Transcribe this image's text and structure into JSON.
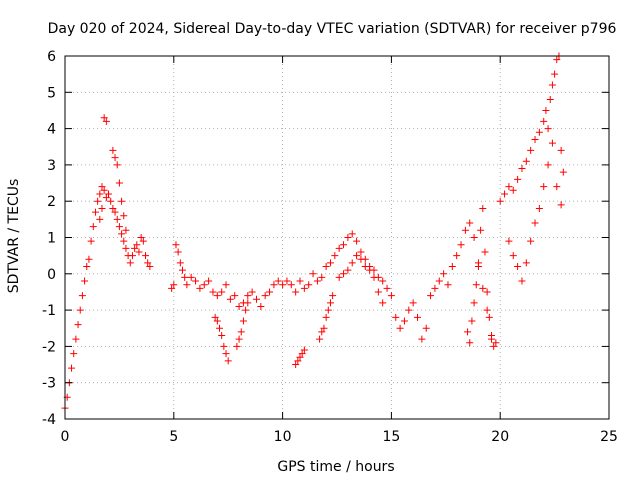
{
  "chart_data": {
    "type": "scatter",
    "title": "Day 020 of 2024, Sidereal Day-to-day VTEC variation (SDTVAR) for receiver p796",
    "xlabel": "GPS time / hours",
    "ylabel": "SDTVAR / TECUs",
    "xlim": [
      0,
      25
    ],
    "ylim": [
      -4,
      6
    ],
    "xticks": [
      0,
      5,
      10,
      15,
      20,
      25
    ],
    "yticks": [
      -4,
      -3,
      -2,
      -1,
      0,
      1,
      2,
      3,
      4,
      5,
      6
    ],
    "grid": true,
    "marker": "+",
    "series": [
      {
        "name": "SDTVAR",
        "color": "#ff0000",
        "x": [
          0.0,
          0.1,
          0.2,
          0.3,
          0.4,
          0.5,
          0.6,
          0.7,
          0.8,
          0.9,
          1.0,
          1.1,
          1.2,
          1.3,
          1.4,
          1.5,
          1.6,
          1.7,
          1.8,
          1.9,
          2.0,
          2.1,
          2.2,
          2.3,
          2.4,
          2.5,
          2.6,
          2.7,
          2.8,
          2.9,
          3.0,
          3.1,
          3.2,
          3.3,
          3.4,
          3.5,
          3.6,
          3.7,
          3.8,
          3.9,
          1.6,
          1.7,
          1.8,
          1.9,
          2.0,
          2.2,
          2.3,
          2.4,
          2.5,
          2.6,
          2.7,
          2.8,
          4.9,
          5.0,
          5.1,
          5.2,
          5.3,
          5.4,
          5.5,
          5.6,
          5.8,
          6.0,
          6.2,
          6.4,
          6.6,
          6.8,
          7.0,
          7.2,
          7.4,
          7.6,
          7.8,
          8.0,
          8.2,
          8.4,
          8.6,
          8.8,
          9.0,
          9.2,
          9.4,
          9.6,
          9.8,
          10.0,
          10.2,
          10.4,
          10.6,
          10.8,
          11.0,
          11.2,
          11.4,
          11.6,
          11.8,
          12.0,
          12.2,
          12.4,
          12.6,
          12.8,
          13.0,
          13.2,
          13.4,
          13.6,
          13.8,
          14.0,
          14.2,
          14.4,
          14.6,
          14.8,
          15.0,
          6.9,
          7.0,
          7.1,
          7.2,
          7.3,
          7.4,
          7.5,
          7.9,
          8.0,
          8.1,
          8.2,
          8.3,
          8.4,
          10.6,
          10.7,
          10.8,
          10.9,
          11.0,
          11.7,
          11.8,
          11.9,
          12.0,
          12.1,
          12.2,
          12.3,
          12.6,
          12.8,
          13.0,
          13.2,
          13.4,
          13.6,
          13.8,
          14.0,
          14.2,
          14.4,
          14.6,
          15.2,
          15.4,
          15.6,
          15.8,
          16.0,
          16.2,
          16.4,
          16.6,
          16.8,
          17.0,
          17.2,
          17.4,
          17.6,
          17.8,
          18.0,
          18.2,
          18.4,
          18.6,
          18.8,
          19.0,
          19.2,
          19.4,
          19.6,
          19.8,
          18.5,
          18.6,
          18.7,
          18.8,
          18.9,
          19.0,
          19.1,
          19.2,
          19.3,
          19.4,
          19.5,
          19.6,
          19.7,
          20.0,
          20.2,
          20.4,
          20.6,
          20.8,
          21.0,
          21.2,
          21.4,
          21.6,
          21.8,
          22.0,
          22.1,
          22.2,
          22.3,
          22.4,
          22.5,
          22.6,
          22.7,
          22.8,
          22.9,
          20.4,
          20.6,
          20.8,
          21.0,
          21.2,
          21.4,
          21.6,
          21.8,
          22.0,
          22.2,
          22.4,
          22.6,
          22.8
        ],
        "y": [
          -3.7,
          -3.4,
          -3.0,
          -2.6,
          -2.2,
          -1.8,
          -1.4,
          -1.0,
          -0.6,
          -0.2,
          0.2,
          0.4,
          0.9,
          1.3,
          1.7,
          2.0,
          2.2,
          2.4,
          2.3,
          2.1,
          2.2,
          2.0,
          1.8,
          1.7,
          1.5,
          1.3,
          1.1,
          0.9,
          0.7,
          0.5,
          0.3,
          0.5,
          0.7,
          0.8,
          0.6,
          1.0,
          0.9,
          0.5,
          0.3,
          0.2,
          1.5,
          1.8,
          4.3,
          4.2,
          2.2,
          3.4,
          3.2,
          3.0,
          2.5,
          2.0,
          1.6,
          1.2,
          -0.4,
          -0.3,
          0.8,
          0.6,
          0.3,
          0.1,
          -0.1,
          -0.3,
          -0.1,
          -0.2,
          -0.4,
          -0.3,
          -0.2,
          -0.5,
          -0.6,
          -0.5,
          -0.3,
          -0.7,
          -0.6,
          -0.9,
          -0.8,
          -0.6,
          -0.5,
          -0.7,
          -0.9,
          -0.6,
          -0.5,
          -0.3,
          -0.2,
          -0.3,
          -0.2,
          -0.3,
          -0.5,
          -0.2,
          -0.4,
          -0.3,
          0.0,
          -0.2,
          -0.1,
          0.2,
          0.3,
          0.5,
          0.7,
          0.8,
          1.0,
          1.1,
          0.9,
          0.6,
          0.4,
          0.2,
          0.1,
          -0.1,
          -0.2,
          -0.4,
          -0.6,
          -1.2,
          -1.3,
          -1.5,
          -1.7,
          -2.0,
          -2.2,
          -2.4,
          -2.0,
          -1.8,
          -1.6,
          -1.3,
          -1.0,
          -0.8,
          -2.5,
          -2.4,
          -2.3,
          -2.2,
          -2.1,
          -1.8,
          -1.6,
          -1.5,
          -1.2,
          -1.0,
          -0.8,
          -0.6,
          -0.1,
          0.0,
          0.1,
          0.3,
          0.5,
          0.4,
          0.2,
          0.1,
          -0.1,
          -0.5,
          -0.8,
          -1.2,
          -1.5,
          -1.3,
          -1.0,
          -0.8,
          -1.2,
          -1.8,
          -1.5,
          -0.6,
          -0.4,
          -0.2,
          0.0,
          -0.3,
          0.2,
          0.5,
          0.8,
          1.2,
          1.4,
          1.0,
          0.2,
          -0.4,
          -1.0,
          -1.8,
          -1.9,
          -1.6,
          -1.9,
          -1.3,
          -0.8,
          -0.3,
          0.3,
          1.2,
          1.8,
          0.6,
          -0.5,
          -1.2,
          -1.7,
          -2.0,
          2.0,
          2.2,
          2.4,
          2.3,
          2.6,
          2.9,
          3.1,
          3.4,
          3.7,
          3.9,
          4.2,
          4.5,
          4.0,
          4.8,
          5.2,
          5.5,
          5.9,
          6.0,
          3.4,
          2.8,
          0.9,
          0.5,
          0.2,
          -0.2,
          0.3,
          0.9,
          1.4,
          1.8,
          2.4,
          3.0,
          3.6,
          2.4,
          1.9
        ]
      }
    ]
  }
}
